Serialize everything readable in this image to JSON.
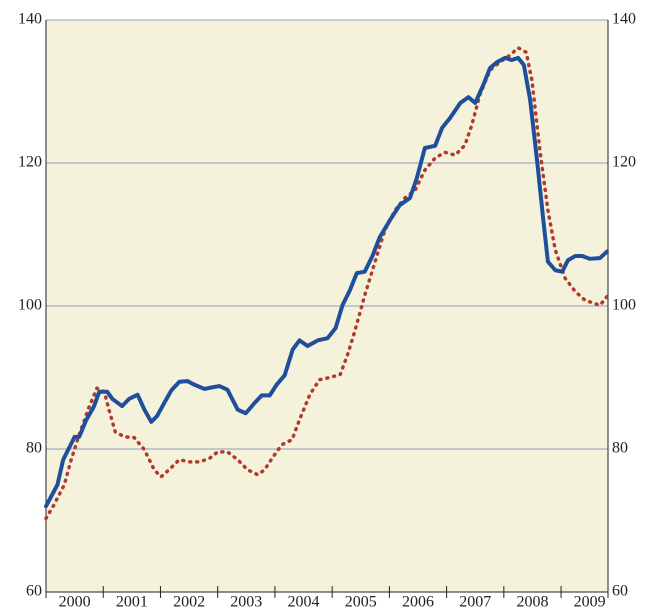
{
  "chart_data": {
    "type": "line",
    "xlim": [
      2000,
      2009.82
    ],
    "xticks": [
      {
        "value": 2000,
        "label": "2000"
      },
      {
        "value": 2001,
        "label": "2001"
      },
      {
        "value": 2002,
        "label": "2002"
      },
      {
        "value": 2003,
        "label": "2003"
      },
      {
        "value": 2004,
        "label": "2004"
      },
      {
        "value": 2005,
        "label": "2005"
      },
      {
        "value": 2006,
        "label": "2006"
      },
      {
        "value": 2007,
        "label": "2007"
      },
      {
        "value": 2008,
        "label": "2008"
      },
      {
        "value": 2009,
        "label": "2009"
      }
    ],
    "ylim": [
      60,
      140
    ],
    "yticks": [
      60,
      80,
      100,
      120,
      140
    ],
    "grid": true,
    "series": [
      {
        "color": "#1f4f9c",
        "style": "solid",
        "x": [
          2000.0,
          2000.2,
          2000.3,
          2000.5,
          2000.58,
          2000.7,
          2000.84,
          2000.93,
          2001.07,
          2001.16,
          2001.33,
          2001.45,
          2001.6,
          2001.72,
          2001.84,
          2001.94,
          2002.07,
          2002.19,
          2002.33,
          2002.47,
          2002.59,
          2002.77,
          2002.89,
          2003.03,
          2003.17,
          2003.35,
          2003.49,
          2003.64,
          2003.77,
          2003.91,
          2004.03,
          2004.17,
          2004.31,
          2004.43,
          2004.57,
          2004.75,
          2004.92,
          2005.06,
          2005.18,
          2005.31,
          2005.43,
          2005.57,
          2005.71,
          2005.83,
          2006.01,
          2006.18,
          2006.36,
          2006.48,
          2006.62,
          2006.8,
          2006.92,
          2007.06,
          2007.24,
          2007.38,
          2007.5,
          2007.64,
          2007.76,
          2007.88,
          2008.02,
          2008.14,
          2008.25,
          2008.35,
          2008.46,
          2008.58,
          2008.69,
          2008.77,
          2008.9,
          2009.02,
          2009.12,
          2009.25,
          2009.37,
          2009.5,
          2009.68,
          2009.8
        ],
        "values": [
          72,
          75,
          78.5,
          81.7,
          81.7,
          84,
          86,
          88,
          88,
          87,
          86,
          87,
          87.6,
          85.5,
          83.8,
          84.6,
          86.5,
          88.2,
          89.4,
          89.5,
          89,
          88.4,
          88.6,
          88.8,
          88.3,
          85.5,
          85,
          86.4,
          87.5,
          87.5,
          89,
          90.3,
          93.9,
          95.2,
          94.4,
          95.2,
          95.5,
          96.9,
          100.1,
          102.2,
          104.6,
          104.8,
          107.1,
          109.6,
          112,
          114.1,
          115.1,
          117.9,
          122.1,
          122.4,
          124.9,
          126.3,
          128.4,
          129.2,
          128.4,
          130.9,
          133.3,
          134.1,
          134.7,
          134.4,
          134.7,
          133.7,
          128.8,
          120.4,
          112,
          106.2,
          105,
          104.8,
          106.4,
          107,
          107,
          106.6,
          106.7,
          107.6
        ]
      },
      {
        "color": "#b13a2c",
        "style": "dotted",
        "x": [
          2000.0,
          2000.14,
          2000.32,
          2000.44,
          2000.58,
          2000.75,
          2000.89,
          2001.02,
          2001.1,
          2001.21,
          2001.37,
          2001.54,
          2001.72,
          2001.89,
          2002.01,
          2002.15,
          2002.33,
          2002.51,
          2002.68,
          2002.86,
          2003.0,
          2003.17,
          2003.35,
          2003.52,
          2003.7,
          2003.82,
          2003.95,
          2004.12,
          2004.3,
          2004.43,
          2004.61,
          2004.78,
          2004.96,
          2005.14,
          2005.27,
          2005.4,
          2005.57,
          2005.75,
          2005.92,
          2006.1,
          2006.27,
          2006.45,
          2006.62,
          2006.8,
          2006.97,
          2007.15,
          2007.32,
          2007.44,
          2007.58,
          2007.76,
          2007.93,
          2008.11,
          2008.25,
          2008.39,
          2008.49,
          2008.63,
          2008.77,
          2008.9,
          2009.07,
          2009.25,
          2009.42,
          2009.68,
          2009.82
        ],
        "values": [
          70.3,
          72.2,
          75,
          78.5,
          82,
          85.8,
          88.5,
          88,
          85.5,
          82.4,
          81.7,
          81.6,
          79.9,
          77.1,
          76.1,
          77.1,
          78.5,
          78.2,
          78.2,
          78.7,
          79.6,
          79.6,
          78.5,
          77.1,
          76.4,
          77.1,
          78.7,
          80.6,
          81.3,
          84.1,
          87.6,
          89.7,
          90,
          90.4,
          93.2,
          96.6,
          101.5,
          106.2,
          110.6,
          113.4,
          115.1,
          116.2,
          119,
          120.7,
          121.5,
          121.1,
          122.5,
          125.3,
          129.5,
          133,
          134.1,
          135.1,
          136.1,
          135.5,
          131.6,
          121.8,
          113.4,
          107.8,
          103.9,
          102,
          100.8,
          100.1,
          101.5
        ]
      }
    ]
  }
}
